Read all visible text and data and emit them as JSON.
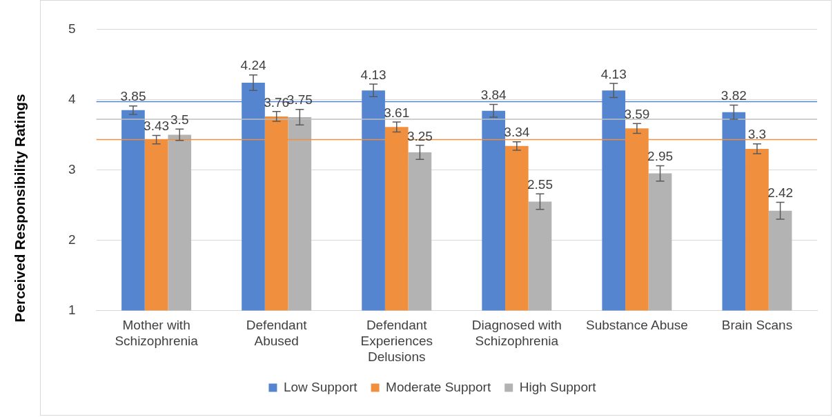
{
  "chart_data": {
    "type": "bar",
    "ylabel": "Perceived Responsibility Ratings",
    "categories": [
      "Mother with\nSchizophrenia",
      "Defendant\nAbused",
      "Defendant\nExperiences\nDelusions",
      "Diagnosed with\nSchizophrenia",
      "Substance Abuse",
      "Brain Scans"
    ],
    "series": [
      {
        "name": "Low Support",
        "color": "#5585cf",
        "values": [
          3.85,
          4.24,
          4.13,
          3.84,
          4.13,
          3.82
        ],
        "errors": [
          0.06,
          0.11,
          0.09,
          0.09,
          0.1,
          0.1
        ]
      },
      {
        "name": "Moderate Support",
        "color": "#f0903f",
        "values": [
          3.43,
          3.76,
          3.61,
          3.34,
          3.59,
          3.3
        ],
        "errors": [
          0.06,
          0.07,
          0.07,
          0.06,
          0.07,
          0.07
        ]
      },
      {
        "name": "High Support",
        "color": "#b3b3b3",
        "values": [
          3.5,
          3.75,
          3.25,
          2.55,
          2.95,
          2.42
        ],
        "errors": [
          0.08,
          0.11,
          0.1,
          0.11,
          0.11,
          0.12
        ]
      }
    ],
    "ylim": [
      1,
      5
    ],
    "yticks": [
      1,
      2,
      3,
      4,
      5
    ],
    "grid": "y",
    "legend": "bottom",
    "data_labels": true,
    "ref_lines": [
      {
        "axis": "y",
        "value": 3.97,
        "color": "#5585cf"
      },
      {
        "axis": "y",
        "value": 3.72,
        "color": "#bfbfbf"
      },
      {
        "axis": "y",
        "value": 3.43,
        "color": "#f0903f"
      }
    ]
  }
}
